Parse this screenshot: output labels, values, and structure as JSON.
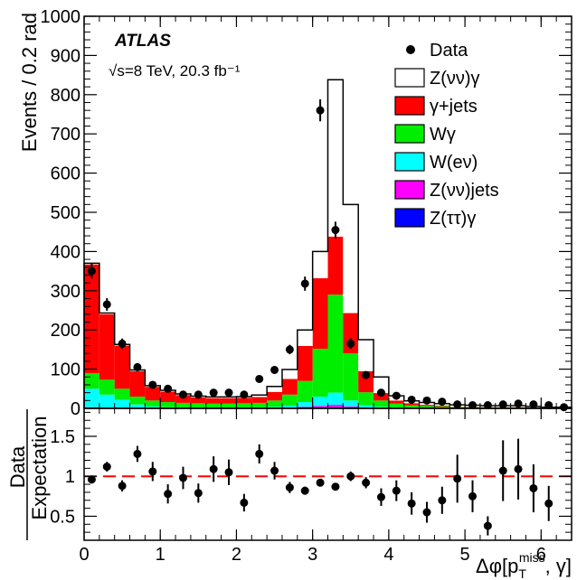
{
  "chart_data": [
    {
      "type": "bar",
      "stacked": true,
      "panel": "main",
      "experiment": "ATLAS",
      "energy_label": "√s=8 TeV, 20.3 fb⁻¹",
      "ylabel": "Events / 0.2 rad",
      "xlim": [
        0,
        6.4
      ],
      "ylim": [
        0,
        1000
      ],
      "x_ticks": [
        0,
        1,
        2,
        3,
        4,
        5,
        6
      ],
      "y_ticks": [
        0,
        100,
        200,
        300,
        400,
        500,
        600,
        700,
        800,
        900,
        1000
      ],
      "bin_edges": [
        0,
        0.2,
        0.4,
        0.6,
        0.8,
        1.0,
        1.2,
        1.4,
        1.6,
        1.8,
        2.0,
        2.2,
        2.4,
        2.6,
        2.8,
        3.0,
        3.2,
        3.4,
        3.6,
        3.8,
        4.0,
        4.2,
        4.4,
        4.6,
        4.8,
        5.0,
        5.2,
        5.4,
        5.6,
        5.8,
        6.0,
        6.2,
        6.4
      ],
      "series": [
        {
          "name": "Z(ττ)γ",
          "color": "#0000ff",
          "values": [
            1,
            1,
            1,
            0,
            0,
            0,
            0,
            0,
            0,
            0,
            0,
            0,
            0,
            0,
            1,
            1,
            3,
            1,
            0,
            0,
            0,
            0,
            0,
            0,
            0,
            0,
            0,
            0,
            0,
            0,
            0,
            0
          ]
        },
        {
          "name": "Z(νν)jets",
          "color": "#ff00ff",
          "values": [
            2,
            1,
            1,
            0,
            0,
            0,
            0,
            0,
            0,
            0,
            0,
            0,
            1,
            2,
            3,
            5,
            6,
            4,
            2,
            1,
            0,
            0,
            0,
            0,
            0,
            0,
            0,
            0,
            0,
            0,
            0,
            0
          ]
        },
        {
          "name": "W(eν)",
          "color": "#00ffff",
          "values": [
            47,
            33,
            20,
            10,
            5,
            3,
            2,
            2,
            2,
            2,
            2,
            2,
            3,
            5,
            12,
            24,
            31,
            15,
            6,
            3,
            2,
            1,
            1,
            1,
            0,
            0,
            0,
            0,
            0,
            0,
            0,
            0
          ]
        },
        {
          "name": "Wγ",
          "color": "#00ee00",
          "values": [
            40,
            38,
            28,
            20,
            15,
            13,
            12,
            11,
            10,
            10,
            11,
            12,
            16,
            28,
            54,
            122,
            250,
            120,
            33,
            16,
            10,
            7,
            5,
            4,
            3,
            3,
            2,
            2,
            2,
            2,
            1,
            1
          ]
        },
        {
          "name": "γ+jets",
          "color": "#ff0000",
          "values": [
            277,
            167,
            110,
            65,
            35,
            27,
            20,
            15,
            14,
            14,
            14,
            15,
            22,
            40,
            89,
            180,
            148,
            103,
            54,
            19,
            8,
            5,
            3,
            2,
            1,
            1,
            1,
            1,
            1,
            0,
            0,
            0
          ]
        },
        {
          "name": "Z(νν)γ",
          "color": "#ffffff",
          "values": [
            3,
            3,
            3,
            3,
            3,
            3,
            3,
            3,
            3,
            3,
            3,
            5,
            14,
            24,
            41,
            68,
            400,
            277,
            80,
            41,
            12,
            6,
            6,
            5,
            5,
            4,
            4,
            4,
            4,
            3,
            2,
            2
          ]
        }
      ],
      "data_points": {
        "name": "Data",
        "x": [
          0.1,
          0.3,
          0.5,
          0.7,
          0.9,
          1.1,
          1.3,
          1.5,
          1.7,
          1.9,
          2.1,
          2.3,
          2.5,
          2.7,
          2.9,
          3.1,
          3.3,
          3.5,
          3.7,
          3.9,
          4.1,
          4.3,
          4.5,
          4.7,
          4.9,
          5.1,
          5.3,
          5.5,
          5.7,
          5.9,
          6.1,
          6.3
        ],
        "y": [
          350,
          265,
          165,
          105,
          60,
          50,
          35,
          35,
          40,
          40,
          35,
          75,
          98,
          150,
          318,
          760,
          455,
          165,
          85,
          40,
          32,
          22,
          20,
          17,
          10,
          8,
          8,
          10,
          12,
          10,
          8,
          3
        ],
        "err": [
          19,
          16,
          13,
          10,
          8,
          7,
          6,
          6,
          6,
          6,
          6,
          9,
          10,
          12,
          18,
          28,
          21,
          13,
          9,
          6,
          6,
          5,
          4,
          4,
          3,
          3,
          3,
          3,
          3,
          3,
          3,
          2
        ]
      },
      "legend_position": "top-right"
    },
    {
      "type": "scatter",
      "panel": "ratio",
      "ylabel_top": "Data",
      "ylabel_bottom": "Expectation",
      "xlabel": "Δφ[p_T^miss, γ]",
      "xlabel_main": "Δφ[p",
      "xlabel_sub": "T",
      "xlabel_sup": "miss",
      "xlabel_tail": ", γ]",
      "xlim": [
        0,
        6.4
      ],
      "ylim": [
        0.2,
        1.85
      ],
      "x_ticks": [
        0,
        1,
        2,
        3,
        4,
        5,
        6
      ],
      "y_ticks": [
        0.5,
        1,
        1.5
      ],
      "reference_line": 1.0,
      "reference_line_color": "#ff0000",
      "x": [
        0.1,
        0.3,
        0.5,
        0.7,
        0.9,
        1.1,
        1.3,
        1.5,
        1.7,
        1.9,
        2.1,
        2.3,
        2.5,
        2.7,
        2.9,
        3.1,
        3.3,
        3.5,
        3.7,
        3.9,
        4.1,
        4.3,
        4.5,
        4.7,
        4.9,
        5.1,
        5.3,
        5.5,
        5.7,
        5.9,
        6.1
      ],
      "y": [
        0.96,
        1.12,
        0.88,
        1.28,
        1.06,
        0.78,
        0.98,
        0.79,
        1.09,
        1.05,
        0.67,
        1.28,
        1.07,
        0.86,
        0.82,
        0.92,
        0.87,
        1.0,
        0.92,
        0.74,
        0.82,
        0.66,
        0.55,
        0.7,
        0.97,
        0.75,
        0.38,
        1.07,
        1.09,
        0.85,
        0.66
      ],
      "err": [
        0.05,
        0.06,
        0.07,
        0.1,
        0.12,
        0.12,
        0.14,
        0.12,
        0.16,
        0.16,
        0.11,
        0.12,
        0.11,
        0.07,
        0.05,
        0.04,
        0.04,
        0.06,
        0.07,
        0.11,
        0.13,
        0.14,
        0.13,
        0.17,
        0.3,
        0.2,
        0.12,
        0.38,
        0.38,
        0.3,
        0.22
      ]
    }
  ]
}
